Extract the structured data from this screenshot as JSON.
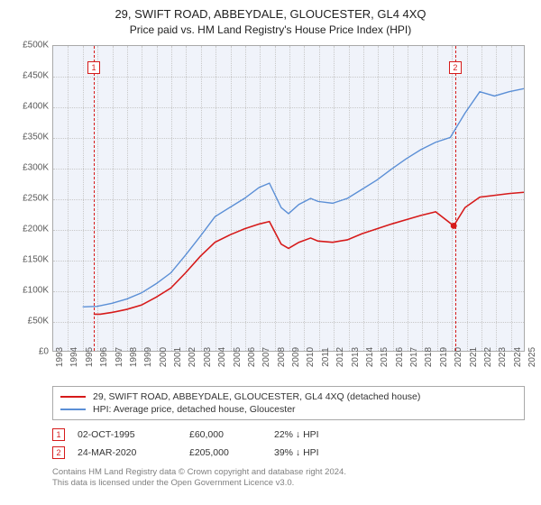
{
  "title": "29, SWIFT ROAD, ABBEYDALE, GLOUCESTER, GL4 4XQ",
  "subtitle": "Price paid vs. HM Land Registry's House Price Index (HPI)",
  "chart": {
    "type": "line",
    "background_color": "#f0f3fa",
    "plot_border_color": "#a9a9a9",
    "grid_color": "#c8c8c8",
    "ylim": [
      0,
      500000
    ],
    "ytick_step": 50000,
    "ylabels": [
      "£0",
      "£50K",
      "£100K",
      "£150K",
      "£200K",
      "£250K",
      "£300K",
      "£350K",
      "£400K",
      "£450K",
      "£500K"
    ],
    "xlim": [
      1993,
      2025
    ],
    "xlabels": [
      "1993",
      "1994",
      "1995",
      "1996",
      "1997",
      "1998",
      "1999",
      "2000",
      "2001",
      "2002",
      "2003",
      "2004",
      "2005",
      "2006",
      "2007",
      "2008",
      "2009",
      "2010",
      "2011",
      "2012",
      "2013",
      "2014",
      "2015",
      "2016",
      "2017",
      "2018",
      "2019",
      "2020",
      "2021",
      "2022",
      "2023",
      "2024",
      "2025"
    ],
    "label_fontsize": 10,
    "label_color": "#595959",
    "series": [
      {
        "name": "property",
        "label": "29, SWIFT ROAD, ABBEYDALE, GLOUCESTER, GL4 4XQ (detached house)",
        "color": "#d61a1a",
        "line_width": 1.6,
        "points": [
          [
            1995.75,
            60000
          ],
          [
            1996.2,
            60000
          ],
          [
            1997,
            63000
          ],
          [
            1998,
            68000
          ],
          [
            1999,
            75000
          ],
          [
            2000,
            88000
          ],
          [
            2001,
            103000
          ],
          [
            2002,
            128000
          ],
          [
            2003,
            155000
          ],
          [
            2004,
            178000
          ],
          [
            2005,
            190000
          ],
          [
            2006,
            200000
          ],
          [
            2007,
            208000
          ],
          [
            2007.7,
            212000
          ],
          [
            2008.5,
            175000
          ],
          [
            2009,
            168000
          ],
          [
            2009.7,
            178000
          ],
          [
            2010.5,
            185000
          ],
          [
            2011,
            180000
          ],
          [
            2012,
            178000
          ],
          [
            2013,
            182000
          ],
          [
            2014,
            192000
          ],
          [
            2015,
            200000
          ],
          [
            2016,
            208000
          ],
          [
            2017,
            215000
          ],
          [
            2018,
            222000
          ],
          [
            2019,
            228000
          ],
          [
            2020.23,
            205000
          ],
          [
            2021,
            235000
          ],
          [
            2022,
            252000
          ],
          [
            2023,
            255000
          ],
          [
            2024,
            258000
          ],
          [
            2025,
            260000
          ]
        ]
      },
      {
        "name": "hpi",
        "label": "HPI: Average price, detached house, Gloucester",
        "color": "#5b8fd6",
        "line_width": 1.4,
        "points": [
          [
            1995,
            72000
          ],
          [
            1996,
            73000
          ],
          [
            1997,
            78000
          ],
          [
            1998,
            85000
          ],
          [
            1999,
            95000
          ],
          [
            2000,
            110000
          ],
          [
            2001,
            128000
          ],
          [
            2002,
            157000
          ],
          [
            2003,
            188000
          ],
          [
            2004,
            220000
          ],
          [
            2005,
            235000
          ],
          [
            2006,
            250000
          ],
          [
            2007,
            268000
          ],
          [
            2007.7,
            275000
          ],
          [
            2008.5,
            235000
          ],
          [
            2009,
            225000
          ],
          [
            2009.7,
            240000
          ],
          [
            2010.5,
            250000
          ],
          [
            2011,
            245000
          ],
          [
            2012,
            242000
          ],
          [
            2013,
            250000
          ],
          [
            2014,
            265000
          ],
          [
            2015,
            280000
          ],
          [
            2016,
            298000
          ],
          [
            2017,
            315000
          ],
          [
            2018,
            330000
          ],
          [
            2019,
            342000
          ],
          [
            2020,
            350000
          ],
          [
            2021,
            390000
          ],
          [
            2022,
            425000
          ],
          [
            2023,
            418000
          ],
          [
            2024,
            425000
          ],
          [
            2025,
            430000
          ]
        ]
      }
    ],
    "markers": [
      {
        "id": "1",
        "x": 1995.75,
        "y_top": 465000,
        "color": "#d61a1a"
      },
      {
        "id": "2",
        "x": 2020.23,
        "y_top": 465000,
        "color": "#d61a1a"
      }
    ]
  },
  "legend": {
    "border_color": "#a9a9a9",
    "items": [
      {
        "color": "#d61a1a",
        "label": "29, SWIFT ROAD, ABBEYDALE, GLOUCESTER, GL4 4XQ (detached house)"
      },
      {
        "color": "#5b8fd6",
        "label": "HPI: Average price, detached house, Gloucester"
      }
    ]
  },
  "transactions": [
    {
      "id": "1",
      "color": "#d61a1a",
      "date": "02-OCT-1995",
      "price": "£60,000",
      "pct": "22% ↓ HPI"
    },
    {
      "id": "2",
      "color": "#d61a1a",
      "date": "24-MAR-2020",
      "price": "£205,000",
      "pct": "39% ↓ HPI"
    }
  ],
  "footer_line1": "Contains HM Land Registry data © Crown copyright and database right 2024.",
  "footer_line2": "This data is licensed under the Open Government Licence v3.0."
}
